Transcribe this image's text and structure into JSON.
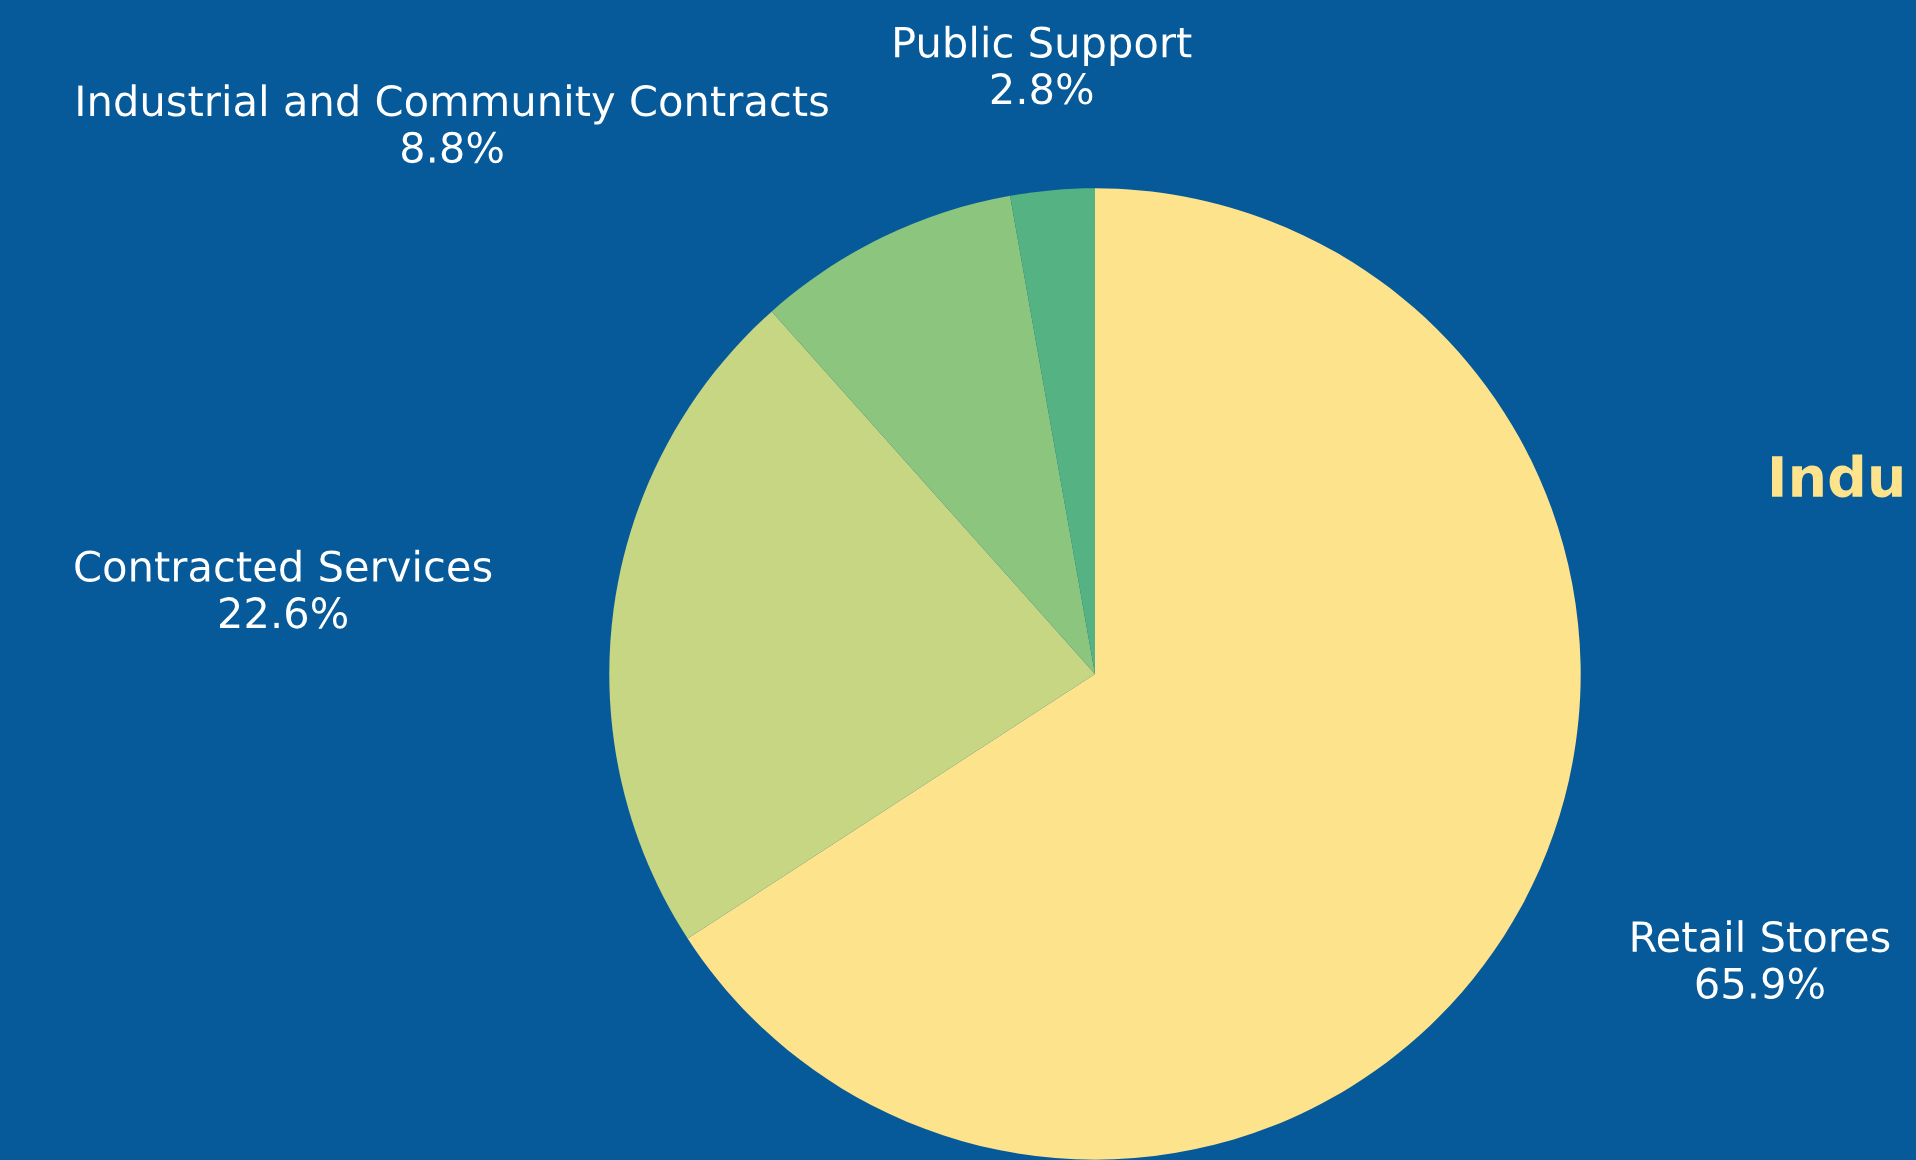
{
  "chart_data": {
    "type": "pie",
    "categories": [
      "Retail Stores",
      "Contracted Services",
      "Industrial and Community Contracts",
      "Public Support"
    ],
    "values": [
      65.9,
      22.6,
      8.8,
      2.8
    ],
    "colors": [
      "#fee38d",
      "#c7d682",
      "#8bc57e",
      "#55b283"
    ],
    "value_labels": [
      "65.9%",
      "22.6%",
      "8.8%",
      "2.8%"
    ],
    "annotations": [
      "Indu"
    ]
  }
}
